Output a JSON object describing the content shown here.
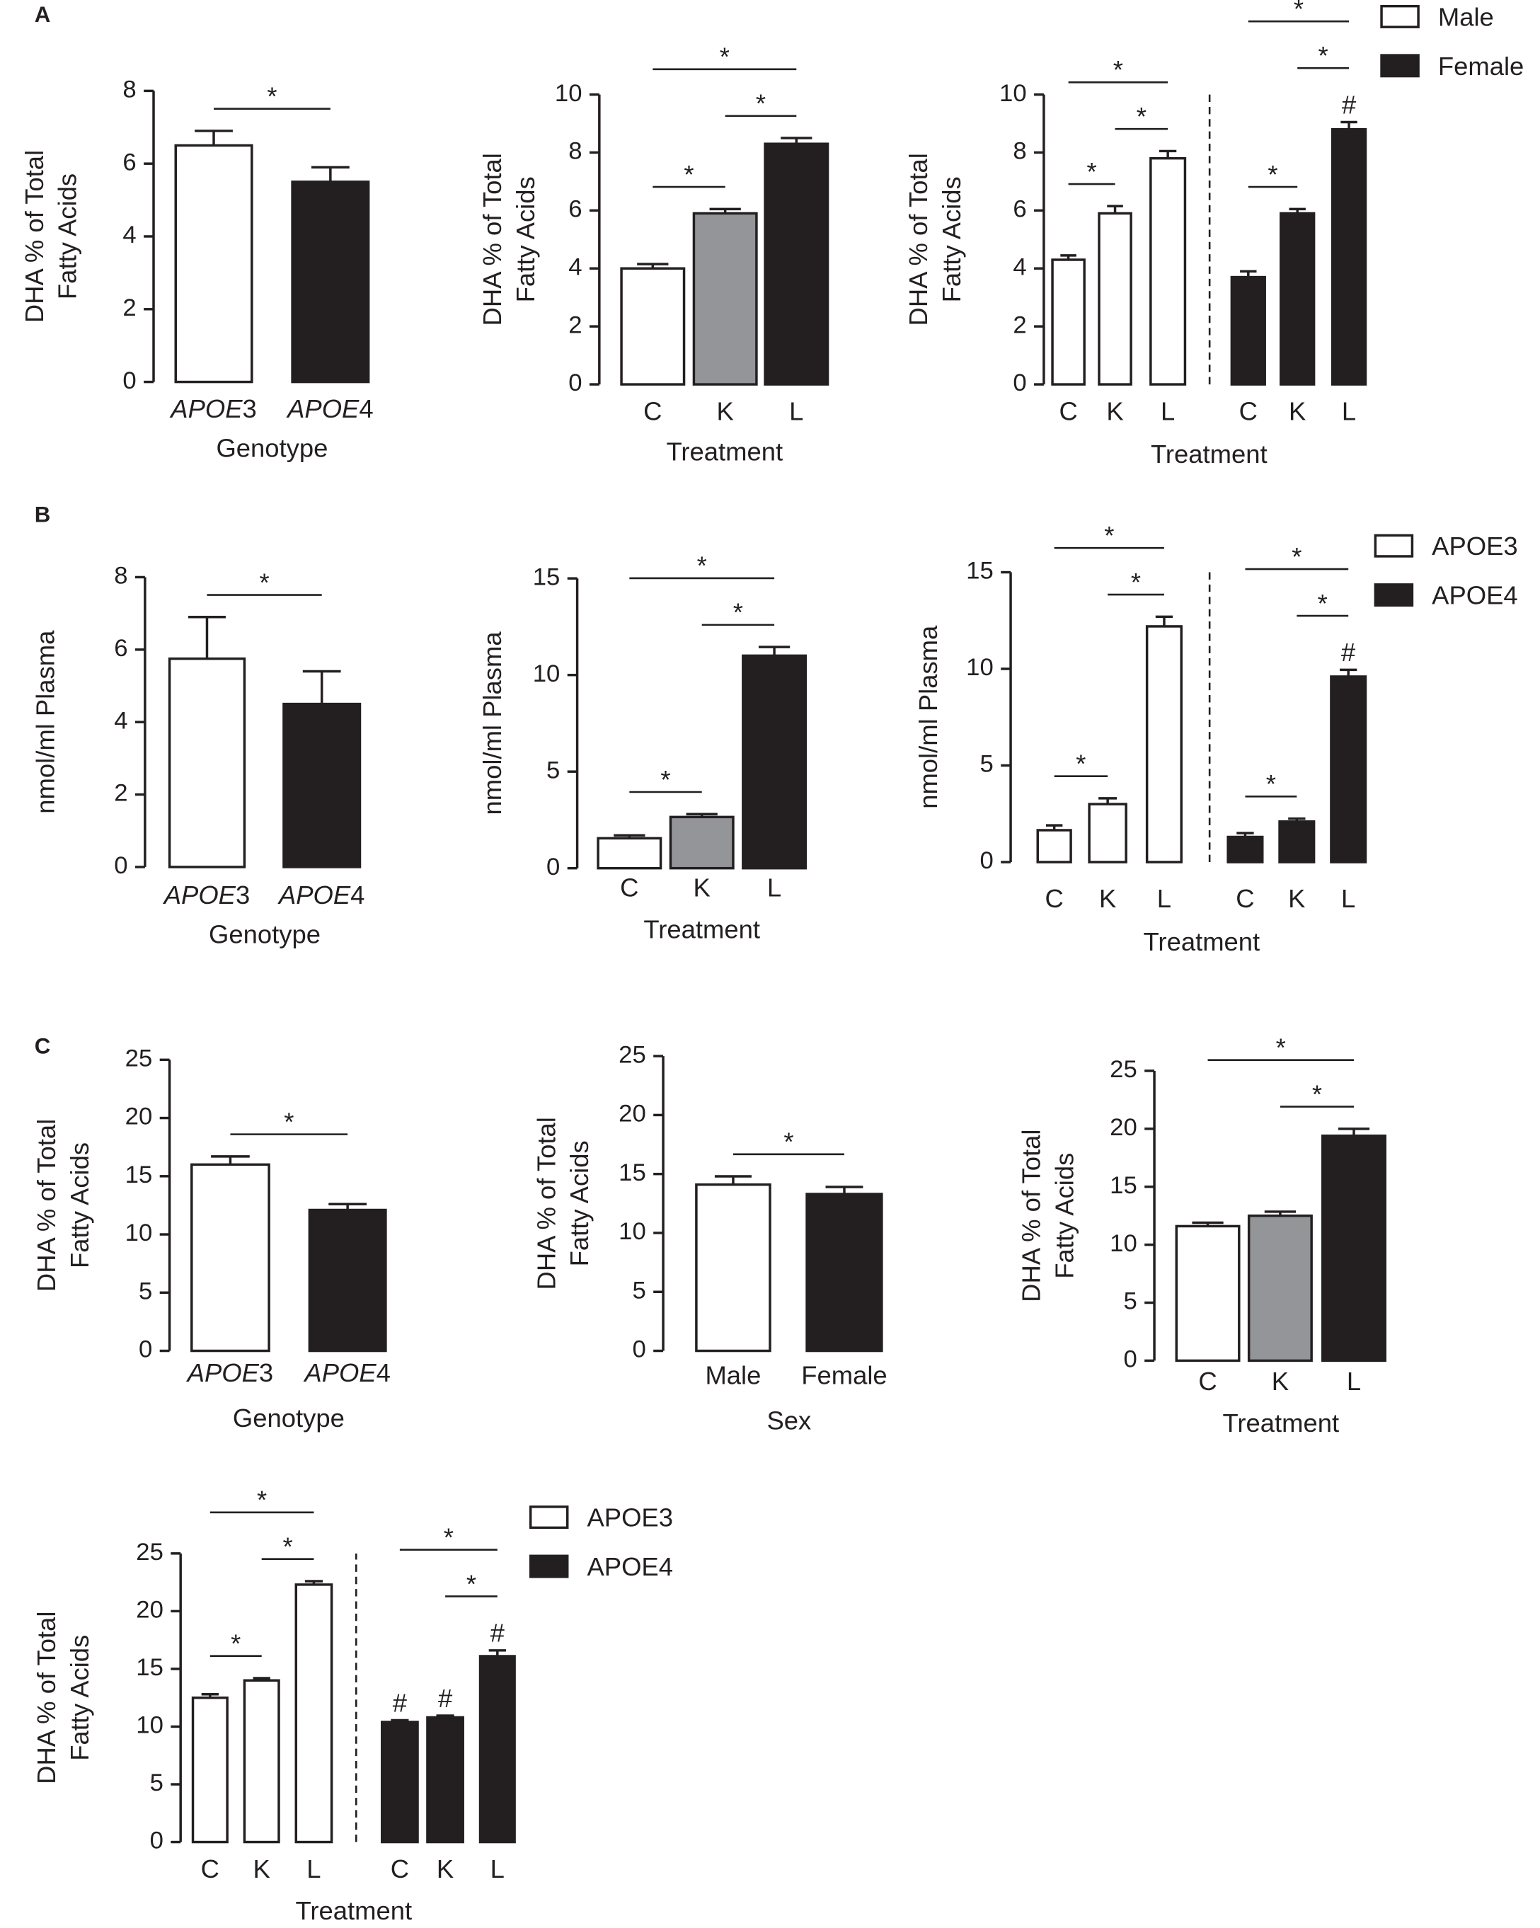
{
  "chart_data": [
    {
      "type": "bar",
      "panel": "A",
      "ylabel": [
        "DHA % of Total",
        "Fatty Acids"
      ],
      "xlabel": "Genotype",
      "italic_categories": true,
      "categories": [
        "APOE3",
        "APOE4"
      ],
      "values": [
        6.5,
        5.5
      ],
      "errors": [
        0.4,
        0.4
      ],
      "colors": [
        "#ffffff",
        "#231f20"
      ],
      "ylim": [
        0,
        8
      ],
      "yticks": [
        0,
        2,
        4,
        6,
        8
      ],
      "significance": [
        {
          "from": 0,
          "to": 1,
          "label": "*"
        }
      ]
    },
    {
      "type": "bar",
      "ylabel": [
        "DHA % of Total",
        "Fatty Acids"
      ],
      "xlabel": "Treatment",
      "categories": [
        "C",
        "K",
        "L"
      ],
      "values": [
        4.0,
        5.9,
        8.3
      ],
      "errors": [
        0.15,
        0.15,
        0.2
      ],
      "colors": [
        "#ffffff",
        "#939598",
        "#231f20"
      ],
      "ylim": [
        0,
        10
      ],
      "yticks": [
        0,
        2,
        4,
        6,
        8,
        10
      ],
      "significance": [
        {
          "from": 0,
          "to": 1,
          "label": "*"
        },
        {
          "from": 1,
          "to": 2,
          "label": "*"
        },
        {
          "from": 0,
          "to": 2,
          "label": "*"
        }
      ]
    },
    {
      "type": "grouped_bar",
      "ylabel": [
        "DHA % of Total",
        "Fatty Acids"
      ],
      "xlabel": "Treatment",
      "legend": true,
      "categories": [
        "C",
        "K",
        "L"
      ],
      "ylim": [
        0,
        10
      ],
      "yticks": [
        0,
        2,
        4,
        6,
        8,
        10
      ],
      "series": [
        {
          "name": "Male",
          "color": "#ffffff",
          "values": [
            4.3,
            5.9,
            7.8
          ],
          "errors": [
            0.15,
            0.25,
            0.25
          ],
          "labels": [
            null,
            null,
            null
          ],
          "significance": [
            {
              "from": 0,
              "to": 1,
              "label": "*"
            },
            {
              "from": 1,
              "to": 2,
              "label": "*"
            },
            {
              "from": 0,
              "to": 2,
              "label": "*"
            }
          ]
        },
        {
          "name": "Female",
          "color": "#231f20",
          "values": [
            3.7,
            5.9,
            8.8
          ],
          "errors": [
            0.2,
            0.15,
            0.25
          ],
          "labels": [
            null,
            null,
            "#"
          ],
          "significance": [
            {
              "from": 0,
              "to": 1,
              "label": "*"
            },
            {
              "from": 1,
              "to": 2,
              "label": "*"
            },
            {
              "from": 0,
              "to": 2,
              "label": "*"
            }
          ]
        }
      ]
    },
    {
      "type": "bar",
      "panel": "B",
      "ylabel": [
        "nmol/ml Plasma"
      ],
      "xlabel": "Genotype",
      "italic_categories": true,
      "categories": [
        "APOE3",
        "APOE4"
      ],
      "values": [
        5.75,
        4.5
      ],
      "errors": [
        1.15,
        0.9
      ],
      "colors": [
        "#ffffff",
        "#231f20"
      ],
      "ylim": [
        0,
        8
      ],
      "yticks": [
        0,
        2,
        4,
        6,
        8
      ],
      "significance": [
        {
          "from": 0,
          "to": 1,
          "label": "*"
        }
      ]
    },
    {
      "type": "bar",
      "ylabel": [
        "nmol/ml Plasma"
      ],
      "xlabel": "Treatment",
      "categories": [
        "C",
        "K",
        "L"
      ],
      "values": [
        1.55,
        2.65,
        11.0
      ],
      "errors": [
        0.15,
        0.15,
        0.45
      ],
      "colors": [
        "#ffffff",
        "#939598",
        "#231f20"
      ],
      "ylim": [
        0,
        15
      ],
      "yticks": [
        0,
        5,
        10,
        15
      ],
      "significance": [
        {
          "from": 0,
          "to": 1,
          "label": "*"
        },
        {
          "from": 1,
          "to": 2,
          "label": "*"
        },
        {
          "from": 0,
          "to": 2,
          "label": "*"
        }
      ]
    },
    {
      "type": "grouped_bar",
      "ylabel": [
        "nmol/ml Plasma"
      ],
      "xlabel": "Treatment",
      "legend": true,
      "categories": [
        "C",
        "K",
        "L"
      ],
      "ylim": [
        0,
        15
      ],
      "yticks": [
        0,
        5,
        10,
        15
      ],
      "series": [
        {
          "name": "APOE3",
          "color": "#ffffff",
          "values": [
            1.65,
            3.0,
            12.2
          ],
          "errors": [
            0.25,
            0.3,
            0.5
          ],
          "labels": [
            null,
            null,
            null
          ],
          "significance": [
            {
              "from": 0,
              "to": 1,
              "label": "*"
            },
            {
              "from": 1,
              "to": 2,
              "label": "*"
            },
            {
              "from": 0,
              "to": 2,
              "label": "*"
            }
          ]
        },
        {
          "name": "APOE4",
          "color": "#231f20",
          "values": [
            1.3,
            2.1,
            9.6
          ],
          "errors": [
            0.2,
            0.15,
            0.35
          ],
          "labels": [
            null,
            null,
            "#"
          ],
          "significance": [
            {
              "from": 0,
              "to": 1,
              "label": "*"
            },
            {
              "from": 1,
              "to": 2,
              "label": "*"
            },
            {
              "from": 0,
              "to": 2,
              "label": "*"
            }
          ]
        }
      ]
    },
    {
      "type": "bar",
      "panel": "C",
      "ylabel": [
        "DHA % of Total",
        "Fatty Acids"
      ],
      "xlabel": "Genotype",
      "italic_categories": true,
      "categories": [
        "APOE3",
        "APOE4"
      ],
      "values": [
        16.0,
        12.1
      ],
      "errors": [
        0.7,
        0.5
      ],
      "colors": [
        "#ffffff",
        "#231f20"
      ],
      "ylim": [
        0,
        25
      ],
      "yticks": [
        0,
        5,
        10,
        15,
        20,
        25
      ],
      "significance": [
        {
          "from": 0,
          "to": 1,
          "label": "*"
        }
      ]
    },
    {
      "type": "bar",
      "ylabel": [
        "DHA % of Total",
        "Fatty Acids"
      ],
      "xlabel": "Sex",
      "categories": [
        "Male",
        "Female"
      ],
      "values": [
        14.1,
        13.3
      ],
      "errors": [
        0.7,
        0.6
      ],
      "colors": [
        "#ffffff",
        "#231f20"
      ],
      "ylim": [
        0,
        25
      ],
      "yticks": [
        0,
        5,
        10,
        15,
        20,
        25
      ],
      "significance": [
        {
          "from": 0,
          "to": 1,
          "label": "*"
        }
      ]
    },
    {
      "type": "bar",
      "ylabel": [
        "DHA % of Total",
        "Fatty Acids"
      ],
      "xlabel": "Treatment",
      "categories": [
        "C",
        "K",
        "L"
      ],
      "values": [
        11.6,
        12.5,
        19.4
      ],
      "errors": [
        0.3,
        0.35,
        0.6
      ],
      "colors": [
        "#ffffff",
        "#939598",
        "#231f20"
      ],
      "ylim": [
        0,
        25
      ],
      "yticks": [
        0,
        5,
        10,
        15,
        20,
        25
      ],
      "significance": [
        {
          "from": 1,
          "to": 2,
          "label": "*"
        },
        {
          "from": 0,
          "to": 2,
          "label": "*"
        }
      ]
    },
    {
      "type": "grouped_bar",
      "ylabel": [
        "DHA % of Total",
        "Fatty Acids"
      ],
      "xlabel": "Treatment",
      "legend": true,
      "categories": [
        "C",
        "K",
        "L"
      ],
      "ylim": [
        0,
        25
      ],
      "yticks": [
        0,
        5,
        10,
        15,
        20,
        25
      ],
      "series": [
        {
          "name": "APOE3",
          "color": "#ffffff",
          "values": [
            12.5,
            14.0,
            22.3
          ],
          "errors": [
            0.3,
            0.2,
            0.3
          ],
          "labels": [
            null,
            null,
            null
          ],
          "significance": [
            {
              "from": 0,
              "to": 1,
              "label": "*"
            },
            {
              "from": 1,
              "to": 2,
              "label": "*"
            },
            {
              "from": 0,
              "to": 2,
              "label": "*"
            }
          ]
        },
        {
          "name": "APOE4",
          "color": "#231f20",
          "values": [
            10.4,
            10.8,
            16.1
          ],
          "errors": [
            0.15,
            0.15,
            0.5
          ],
          "labels": [
            "#",
            "#",
            "#"
          ],
          "significance": [
            {
              "from": 1,
              "to": 2,
              "label": "*"
            },
            {
              "from": 0,
              "to": 2,
              "label": "*"
            }
          ]
        }
      ]
    }
  ]
}
